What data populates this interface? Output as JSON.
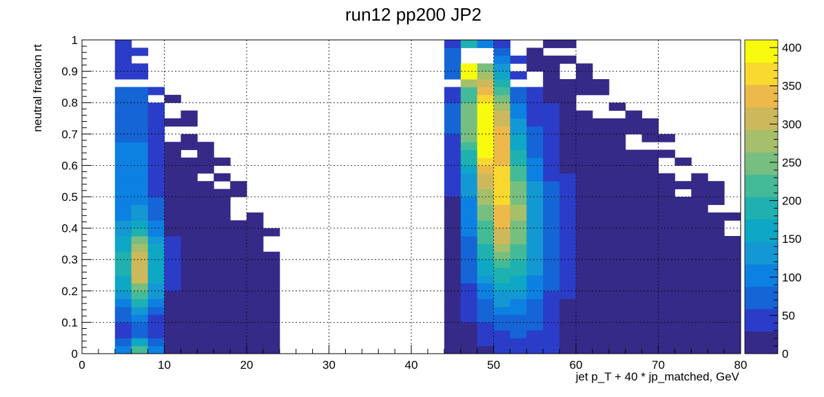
{
  "chart_data": {
    "type": "heatmap",
    "title": "run12 pp200 JP2",
    "xlabel": "jet p_T + 40 * jp_matched, GeV",
    "ylabel": "neutral fraction rt",
    "xlim": [
      0,
      80
    ],
    "ylim": [
      0,
      1
    ],
    "zlim": [
      0,
      410
    ],
    "x_ticks": [
      "0",
      "10",
      "20",
      "30",
      "40",
      "50",
      "60",
      "70",
      "80"
    ],
    "y_ticks": [
      "0",
      "0.1",
      "0.2",
      "0.3",
      "0.4",
      "0.5",
      "0.6",
      "0.7",
      "0.8",
      "0.9",
      "1"
    ],
    "z_ticks": [
      "0",
      "50",
      "100",
      "150",
      "200",
      "250",
      "300",
      "350",
      "400"
    ],
    "bin_width_x": 2,
    "bin_width_y": 0.025,
    "grid": true,
    "colormap": [
      "#352a87",
      "#2b3dc8",
      "#1565d6",
      "#0d81e2",
      "#1498d3",
      "#0ea7c5",
      "#1fb1b0",
      "#43bb98",
      "#77bf80",
      "#a6bf6a",
      "#cdb95b",
      "#ecba4a",
      "#f9d82f",
      "#f9fb0e"
    ],
    "hotspots": [
      {
        "x": 7,
        "y": 0.27,
        "sx": 1.8,
        "sy": 0.1,
        "z": 270
      },
      {
        "x": 7,
        "y": 0.02,
        "sx": 1.5,
        "sy": 0.02,
        "z": 200
      },
      {
        "x": 6,
        "y": 0.6,
        "sx": 2.5,
        "sy": 0.25,
        "z": 90
      },
      {
        "x": 49,
        "y": 0.75,
        "sx": 2.0,
        "sy": 0.13,
        "z": 390
      },
      {
        "x": 51,
        "y": 0.5,
        "sx": 2.2,
        "sy": 0.14,
        "z": 240
      },
      {
        "x": 51,
        "y": 0.3,
        "sx": 3.0,
        "sy": 0.15,
        "z": 120
      },
      {
        "x": 47,
        "y": 0.93,
        "sx": 1.0,
        "sy": 0.04,
        "z": 420
      },
      {
        "x": 55,
        "y": 0.4,
        "sx": 3.0,
        "sy": 0.3,
        "z": 60
      }
    ],
    "regions": [
      {
        "x0": 4,
        "x1": 24,
        "ymax_by_bin": [
          1.0,
          0.975,
          0.875,
          0.825,
          0.775,
          0.7,
          0.625,
          0.55,
          0.45,
          0.4
        ]
      },
      {
        "x0": 44,
        "x1": 80,
        "ymax_by_bin": [
          1.0,
          1.0,
          1.0,
          1.0,
          1.0,
          1.0,
          1.0,
          1.0,
          0.925,
          0.875,
          0.825,
          0.775,
          0.75,
          0.7,
          0.65,
          0.6,
          0.55,
          0.5
        ]
      }
    ]
  }
}
